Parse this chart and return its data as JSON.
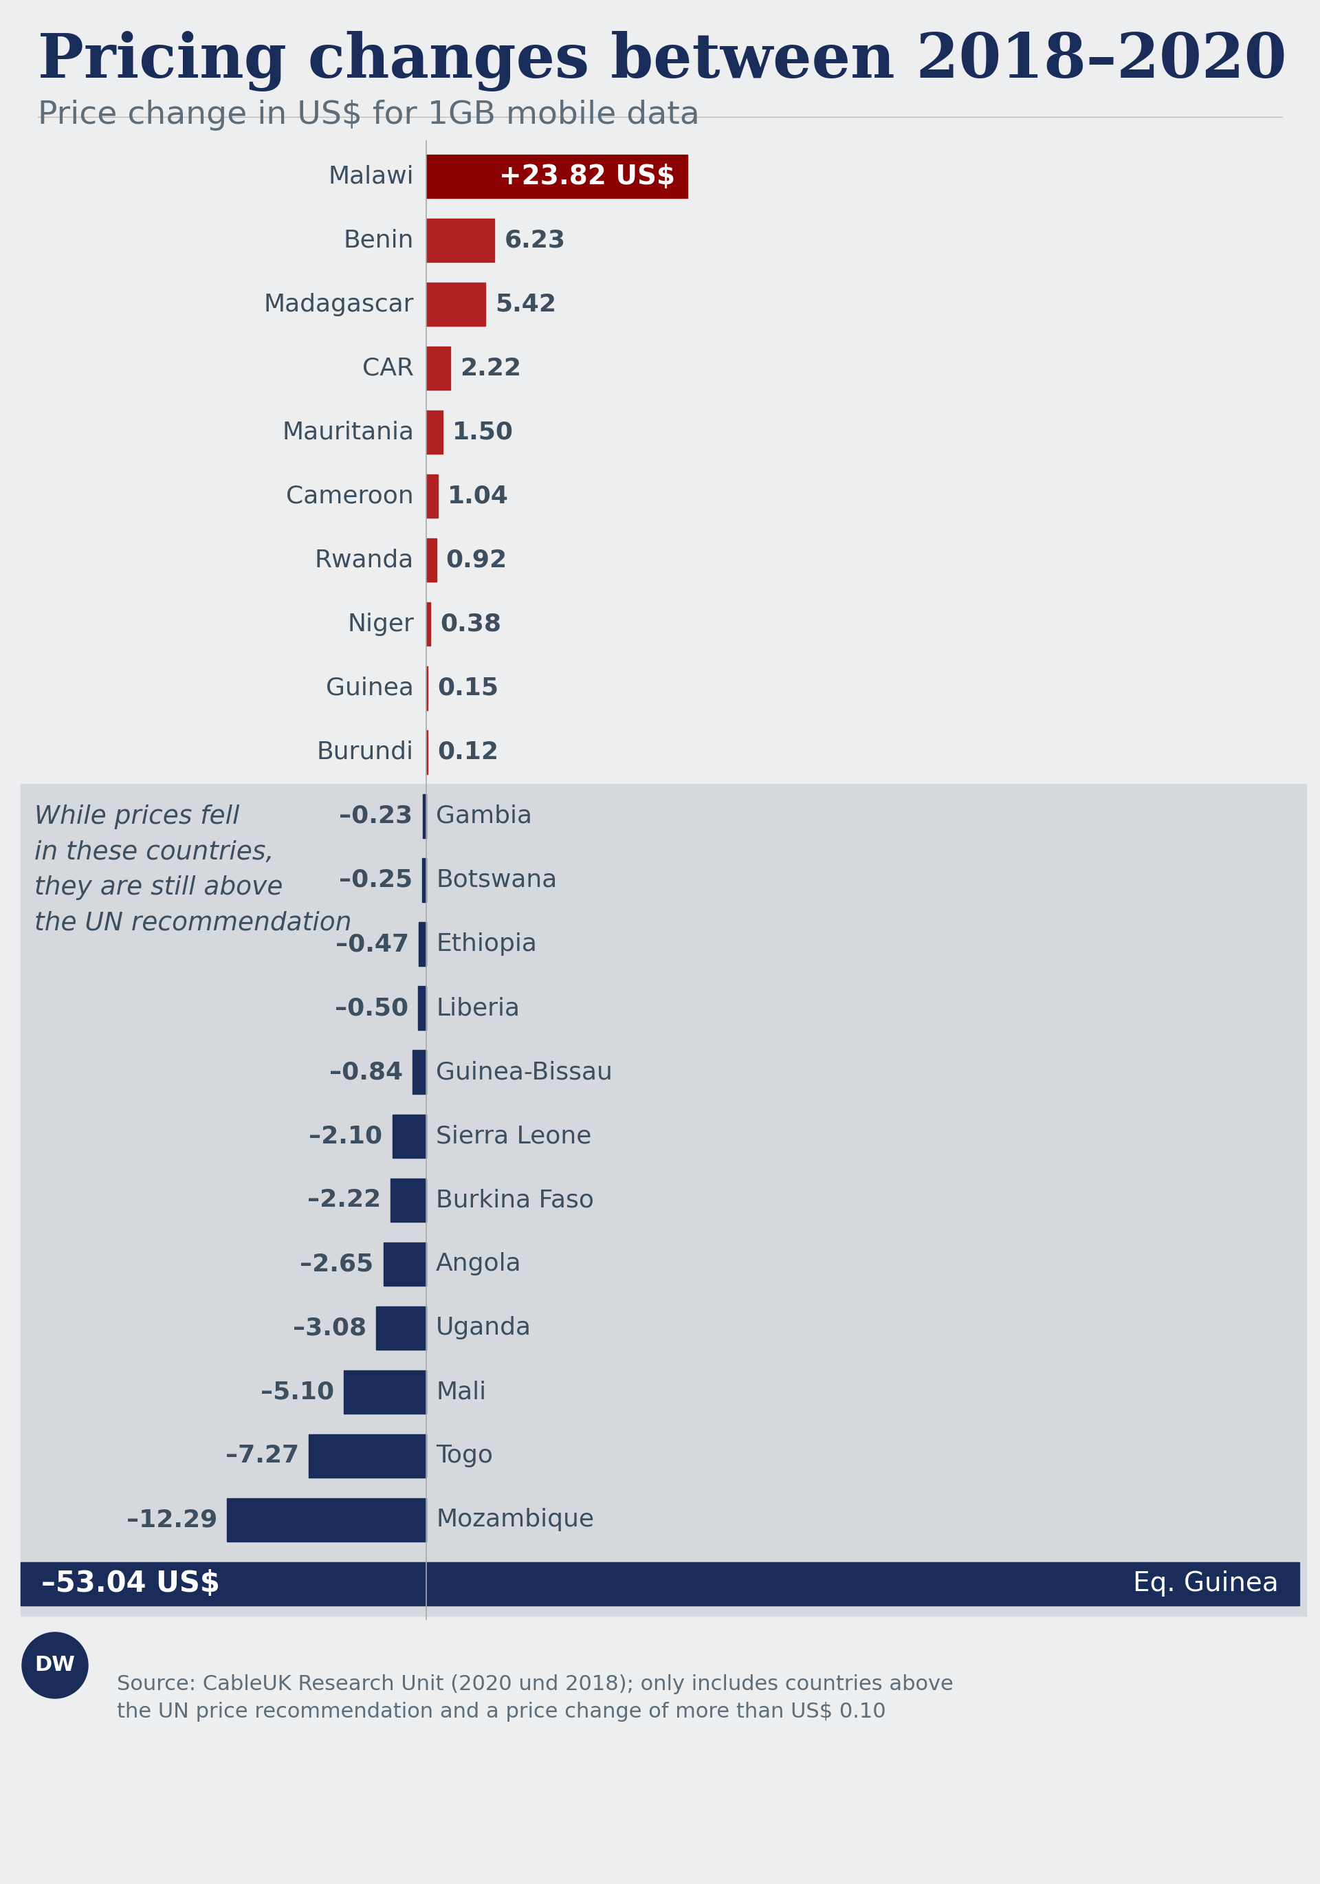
{
  "title": "Pricing changes between 2018–2020",
  "subtitle": "Price change in US$ for 1GB mobile data",
  "bg_color": "#ECEEF0",
  "bg_color_lower": "#D5D9DE",
  "title_color": "#1a2d5a",
  "subtitle_color": "#5d6d7a",
  "positive_bar_color": "#b22222",
  "positive_bar_color_top": "#8b0000",
  "negative_bar_color": "#1a2d5a",
  "text_color_dark": "#3d4f5e",
  "white": "#ffffff",
  "countries_positive": [
    "Malawi",
    "Benin",
    "Madagascar",
    "CAR",
    "Mauritania",
    "Cameroon",
    "Rwanda",
    "Niger",
    "Guinea",
    "Burundi"
  ],
  "values_positive": [
    23.82,
    6.23,
    5.42,
    2.22,
    1.5,
    1.04,
    0.92,
    0.38,
    0.15,
    0.12
  ],
  "labels_positive": [
    "+23.82 US$",
    "6.23",
    "5.42",
    "2.22",
    "1.50",
    "1.04",
    "0.92",
    "0.38",
    "0.15",
    "0.12"
  ],
  "countries_negative": [
    "Gambia",
    "Botswana",
    "Ethiopia",
    "Liberia",
    "Guinea-Bissau",
    "Sierra Leone",
    "Burkina Faso",
    "Angola",
    "Uganda",
    "Mali",
    "Togo",
    "Mozambique",
    "Eq. Guinea"
  ],
  "values_negative": [
    -0.23,
    -0.25,
    -0.47,
    -0.5,
    -0.84,
    -2.1,
    -2.22,
    -2.65,
    -3.08,
    -5.1,
    -7.27,
    -12.29,
    -53.04
  ],
  "labels_negative": [
    "–0.23",
    "–0.25",
    "–0.47",
    "–0.50",
    "–0.84",
    "–2.10",
    "–2.22",
    "–2.65",
    "–3.08",
    "–5.10",
    "–7.27",
    "–12.29",
    "–53.04 US$"
  ],
  "annotation_text": "While prices fell\nin these countries,\nthey are still above\nthe UN recommendation",
  "source_text": "Source: CableUK Research Unit (2020 und 2018); only includes countries above\nthe UN price recommendation and a price change of more than US$ 0.10",
  "dw_logo_color": "#1a2d5a"
}
